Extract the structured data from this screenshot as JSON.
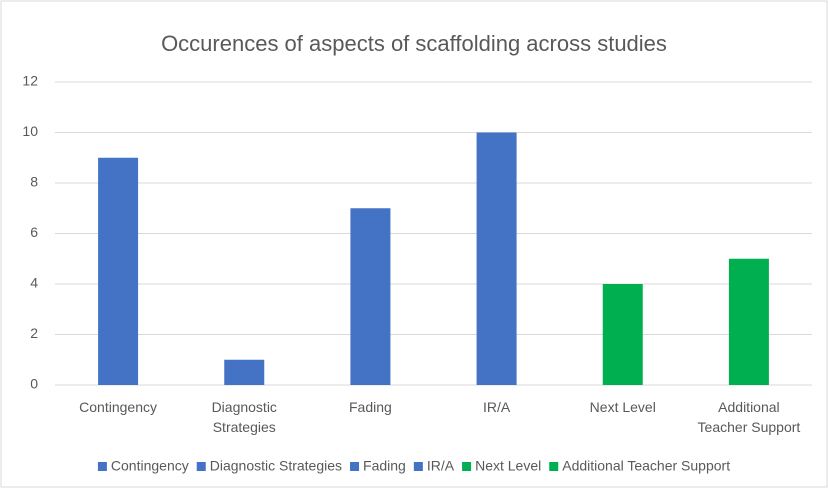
{
  "chart_data": {
    "type": "bar",
    "title": "Occurences of aspects of scaffolding across studies",
    "categories": [
      "Contingency",
      "Diagnostic Strategies",
      "Fading",
      "IR/A",
      "Next Level",
      "Additional Teacher Support"
    ],
    "values": [
      9,
      1,
      7,
      10,
      4,
      5
    ],
    "colors": [
      "#4472c4",
      "#4472c4",
      "#4472c4",
      "#4472c4",
      "#00b050",
      "#00b050"
    ],
    "ylim": [
      0,
      12
    ],
    "yticks": [
      0,
      2,
      4,
      6,
      8,
      10,
      12
    ],
    "grid": true,
    "legend": "bottom"
  }
}
